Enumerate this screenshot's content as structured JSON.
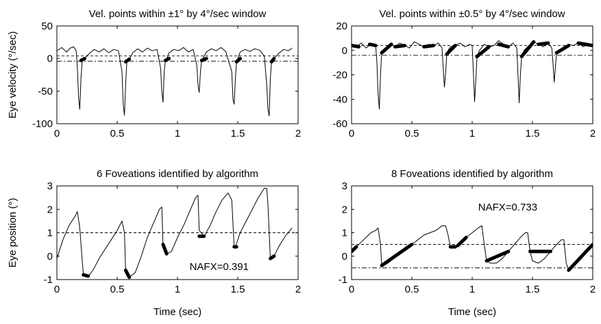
{
  "chart_data": [
    {
      "type": "line",
      "title": "Vel. points within ±1° by 4°/sec window",
      "xlabel": "",
      "ylabel": "Eye velocity (°/sec)",
      "xlim": [
        0,
        2
      ],
      "ylim": [
        -100,
        50
      ],
      "xticks": [
        "0",
        "0.5",
        "1",
        "1.5",
        "2"
      ],
      "xtick_values": [
        0,
        0.5,
        1,
        1.5,
        2
      ],
      "yticks": [
        "-100",
        "-50",
        "0",
        "50"
      ],
      "ytick_values": [
        -100,
        -50,
        0,
        50
      ],
      "grid": false,
      "reference_lines": [
        4,
        -4
      ],
      "series": [
        {
          "x": [
            0,
            0.04,
            0.08,
            0.11,
            0.14,
            0.16,
            0.17,
            0.18,
            0.19,
            0.2,
            0.21,
            0.23,
            0.27,
            0.31,
            0.35,
            0.39,
            0.43,
            0.47,
            0.51,
            0.54,
            0.55,
            0.56,
            0.57,
            0.58,
            0.6,
            0.63,
            0.67,
            0.71,
            0.75,
            0.79,
            0.83,
            0.86,
            0.87,
            0.88,
            0.89,
            0.9,
            0.91,
            0.93,
            0.97,
            1.01,
            1.05,
            1.09,
            1.13,
            1.16,
            1.17,
            1.18,
            1.19,
            1.2,
            1.21,
            1.24,
            1.28,
            1.32,
            1.36,
            1.4,
            1.45,
            1.46,
            1.47,
            1.48,
            1.49,
            1.5,
            1.52,
            1.56,
            1.6,
            1.64,
            1.68,
            1.72,
            1.74,
            1.75,
            1.76,
            1.77,
            1.78,
            1.8,
            1.84,
            1.88,
            1.92,
            1.95
          ],
          "y": [
            12,
            17,
            10,
            16,
            18,
            12,
            -15,
            -60,
            -78,
            -30,
            -3,
            0,
            8,
            14,
            10,
            15,
            9,
            14,
            12,
            -20,
            -70,
            -87,
            -40,
            -5,
            -1,
            9,
            15,
            10,
            16,
            12,
            14,
            -15,
            -50,
            -67,
            -20,
            -3,
            0,
            9,
            14,
            12,
            17,
            10,
            14,
            -10,
            -40,
            -52,
            -22,
            -3,
            0,
            10,
            15,
            12,
            17,
            11,
            -20,
            -63,
            -70,
            -30,
            -5,
            0,
            10,
            14,
            11,
            15,
            13,
            4,
            -40,
            -77,
            -88,
            -30,
            -5,
            0,
            8,
            14,
            12,
            16
          ]
        }
      ],
      "highlight_segments": [
        {
          "x": [
            0.2,
            0.23
          ],
          "y": [
            -3,
            0
          ]
        },
        {
          "x": [
            0.57,
            0.6
          ],
          "y": [
            -5,
            -1
          ]
        },
        {
          "x": [
            0.9,
            0.93
          ],
          "y": [
            -3,
            0
          ]
        },
        {
          "x": [
            1.2,
            1.24
          ],
          "y": [
            -3,
            0
          ]
        },
        {
          "x": [
            1.49,
            1.52
          ],
          "y": [
            -5,
            0
          ]
        },
        {
          "x": [
            1.78,
            1.8
          ],
          "y": [
            -5,
            0
          ]
        }
      ]
    },
    {
      "type": "line",
      "title": "Vel. points within ±0.5° by 4°/sec window",
      "xlabel": "",
      "ylabel": "",
      "xlim": [
        0,
        2
      ],
      "ylim": [
        -60,
        20
      ],
      "xticks": [
        "0",
        "0.5",
        "1",
        "1.5",
        "2"
      ],
      "xtick_values": [
        0,
        0.5,
        1,
        1.5,
        2
      ],
      "yticks": [
        "-60",
        "-40",
        "-20",
        "0",
        "20"
      ],
      "ytick_values": [
        -60,
        -40,
        -20,
        0,
        20
      ],
      "grid": false,
      "reference_lines": [
        4,
        -4
      ],
      "series": [
        {
          "x": [
            0,
            0.04,
            0.08,
            0.12,
            0.16,
            0.2,
            0.21,
            0.22,
            0.23,
            0.24,
            0.25,
            0.27,
            0.3,
            0.33,
            0.36,
            0.4,
            0.44,
            0.48,
            0.52,
            0.56,
            0.6,
            0.64,
            0.68,
            0.72,
            0.75,
            0.76,
            0.77,
            0.78,
            0.79,
            0.8,
            0.82,
            0.86,
            0.9,
            0.94,
            0.98,
            1.0,
            1.01,
            1.02,
            1.03,
            1.04,
            1.06,
            1.1,
            1.14,
            1.18,
            1.22,
            1.26,
            1.3,
            1.34,
            1.37,
            1.38,
            1.39,
            1.4,
            1.41,
            1.43,
            1.47,
            1.51,
            1.55,
            1.59,
            1.63,
            1.66,
            1.67,
            1.68,
            1.69,
            1.7,
            1.72,
            1.76,
            1.8,
            1.84,
            1.88,
            1.92,
            1.96,
            2.0
          ],
          "y": [
            4,
            3,
            6,
            2,
            5,
            4,
            -10,
            -35,
            -48,
            -20,
            -2,
            0,
            3,
            5,
            3,
            6,
            4,
            2,
            7,
            5,
            3,
            5,
            4,
            6,
            2,
            -15,
            -30,
            -18,
            -3,
            0,
            3,
            4,
            6,
            3,
            5,
            4,
            -18,
            -42,
            -25,
            -5,
            0,
            5,
            3,
            4,
            8,
            5,
            3,
            6,
            2,
            -20,
            -43,
            -20,
            -5,
            0,
            4,
            7,
            5,
            3,
            6,
            2,
            -10,
            -26,
            -14,
            -2,
            0,
            3,
            5,
            4,
            6,
            3,
            5,
            4
          ]
        }
      ],
      "highlight_segments": [
        {
          "x": [
            0.0,
            0.06
          ],
          "y": [
            4,
            3
          ]
        },
        {
          "x": [
            0.15,
            0.2
          ],
          "y": [
            5,
            4
          ]
        },
        {
          "x": [
            0.25,
            0.33
          ],
          "y": [
            -2,
            5
          ]
        },
        {
          "x": [
            0.36,
            0.44
          ],
          "y": [
            3,
            4
          ]
        },
        {
          "x": [
            0.6,
            0.68
          ],
          "y": [
            3,
            4
          ]
        },
        {
          "x": [
            0.79,
            0.86
          ],
          "y": [
            -3,
            4
          ]
        },
        {
          "x": [
            1.04,
            1.14
          ],
          "y": [
            -5,
            3
          ]
        },
        {
          "x": [
            1.22,
            1.3
          ],
          "y": [
            5,
            3
          ]
        },
        {
          "x": [
            1.41,
            1.51
          ],
          "y": [
            -5,
            7
          ]
        },
        {
          "x": [
            1.55,
            1.63
          ],
          "y": [
            5,
            6
          ]
        },
        {
          "x": [
            1.7,
            1.8
          ],
          "y": [
            -2,
            4
          ]
        },
        {
          "x": [
            1.88,
            2.0
          ],
          "y": [
            6,
            4
          ]
        }
      ]
    },
    {
      "type": "line",
      "title": "6  Foveations identified by algorithm",
      "xlabel": "Time (sec)",
      "ylabel": "Eye position (°)",
      "xlim": [
        0,
        2
      ],
      "ylim": [
        -1,
        3
      ],
      "xticks": [
        "0",
        "0.5",
        "1",
        "1.5",
        "2"
      ],
      "xtick_values": [
        0,
        0.5,
        1,
        1.5,
        2
      ],
      "yticks": [
        "-1",
        "0",
        "1",
        "2",
        "3"
      ],
      "ytick_values": [
        -1,
        0,
        1,
        2,
        3
      ],
      "grid": false,
      "reference_lines": [
        1,
        -1
      ],
      "annotation": {
        "text": "NAFX=0.391",
        "x": 1.1,
        "y": -0.45
      },
      "series": [
        {
          "x": [
            0,
            0.05,
            0.1,
            0.15,
            0.17,
            0.19,
            0.21,
            0.22,
            0.26,
            0.3,
            0.35,
            0.4,
            0.45,
            0.5,
            0.54,
            0.56,
            0.57,
            0.6,
            0.65,
            0.7,
            0.75,
            0.8,
            0.85,
            0.87,
            0.88,
            0.91,
            0.95,
            1.0,
            1.05,
            1.1,
            1.15,
            1.17,
            1.18,
            1.22,
            1.27,
            1.32,
            1.37,
            1.42,
            1.45,
            1.47,
            1.48,
            1.52,
            1.57,
            1.62,
            1.67,
            1.72,
            1.74,
            1.75,
            1.77,
            1.8,
            1.85,
            1.9,
            1.95
          ],
          "y": [
            -0.1,
            0.7,
            1.3,
            1.7,
            1.9,
            1.2,
            -0.2,
            -0.8,
            -0.85,
            -0.6,
            -0.1,
            0.3,
            0.7,
            1.1,
            1.5,
            1.0,
            -0.6,
            -0.9,
            -0.7,
            0.0,
            0.8,
            1.4,
            2.0,
            2.1,
            0.5,
            0.1,
            0.2,
            0.8,
            1.3,
            1.9,
            2.5,
            2.6,
            1.1,
            0.85,
            1.3,
            1.9,
            2.4,
            2.7,
            2.4,
            0.4,
            0.4,
            1.0,
            1.5,
            2.0,
            2.5,
            2.9,
            2.9,
            2.2,
            -0.1,
            0.0,
            0.5,
            0.9,
            1.2
          ]
        }
      ],
      "highlight_segments": [
        {
          "x": [
            0.22,
            0.26
          ],
          "y": [
            -0.8,
            -0.85
          ]
        },
        {
          "x": [
            0.57,
            0.6
          ],
          "y": [
            -0.6,
            -0.9
          ]
        },
        {
          "x": [
            0.88,
            0.91
          ],
          "y": [
            0.5,
            0.1
          ]
        },
        {
          "x": [
            1.18,
            1.22
          ],
          "y": [
            0.85,
            0.85
          ]
        },
        {
          "x": [
            1.47,
            1.49
          ],
          "y": [
            0.4,
            0.4
          ]
        },
        {
          "x": [
            1.77,
            1.8
          ],
          "y": [
            -0.1,
            0.0
          ]
        }
      ]
    },
    {
      "type": "line",
      "title": "8  Foveations identified by algorithm",
      "xlabel": "Time (sec)",
      "ylabel": "",
      "xlim": [
        0,
        2
      ],
      "ylim": [
        -1,
        3
      ],
      "xticks": [
        "0",
        "0.5",
        "1",
        "1.5",
        "2"
      ],
      "xtick_values": [
        0,
        0.5,
        1,
        1.5,
        2
      ],
      "yticks": [
        "-1",
        "0",
        "1",
        "2",
        "3"
      ],
      "ytick_values": [
        -1,
        0,
        1,
        2,
        3
      ],
      "grid": false,
      "reference_lines": [
        0.5,
        -0.5
      ],
      "annotation": {
        "text": "NAFX=0.733",
        "x": 1.05,
        "y": 2.1
      },
      "series": [
        {
          "x": [
            0,
            0.04,
            0.08,
            0.12,
            0.16,
            0.2,
            0.22,
            0.24,
            0.25,
            0.27,
            0.3,
            0.35,
            0.4,
            0.45,
            0.5,
            0.55,
            0.6,
            0.65,
            0.7,
            0.75,
            0.78,
            0.8,
            0.82,
            0.85,
            0.9,
            0.95,
            1.0,
            1.05,
            1.08,
            1.1,
            1.12,
            1.15,
            1.2,
            1.25,
            1.3,
            1.35,
            1.4,
            1.44,
            1.46,
            1.48,
            1.5,
            1.55,
            1.6,
            1.65,
            1.7,
            1.74,
            1.76,
            1.78,
            1.8,
            1.85,
            1.9,
            1.95,
            2.0
          ],
          "y": [
            0.2,
            0.4,
            0.6,
            0.8,
            1.0,
            1.1,
            1.2,
            0.5,
            -0.4,
            -0.4,
            -0.3,
            -0.1,
            0.1,
            0.3,
            0.5,
            0.7,
            0.9,
            1.0,
            1.1,
            1.3,
            1.3,
            0.9,
            0.4,
            0.4,
            0.5,
            0.8,
            1.0,
            1.2,
            1.3,
            0.5,
            -0.2,
            -0.3,
            -0.3,
            -0.1,
            0.2,
            0.5,
            0.8,
            1.0,
            1.0,
            0.2,
            -0.2,
            -0.3,
            -0.1,
            0.2,
            0.5,
            0.7,
            0.7,
            -0.3,
            -0.6,
            -0.4,
            -0.1,
            0.2,
            0.5
          ]
        }
      ],
      "highlight_segments": [
        {
          "x": [
            0.0,
            0.04
          ],
          "y": [
            0.2,
            0.4
          ]
        },
        {
          "x": [
            0.25,
            0.5
          ],
          "y": [
            -0.4,
            0.5
          ]
        },
        {
          "x": [
            0.82,
            0.86
          ],
          "y": [
            0.4,
            0.4
          ]
        },
        {
          "x": [
            0.88,
            0.95
          ],
          "y": [
            0.45,
            0.8
          ]
        },
        {
          "x": [
            1.12,
            1.3
          ],
          "y": [
            -0.2,
            0.2
          ]
        },
        {
          "x": [
            1.48,
            1.65
          ],
          "y": [
            0.2,
            0.2
          ]
        },
        {
          "x": [
            1.8,
            2.0
          ],
          "y": [
            -0.6,
            0.5
          ]
        }
      ]
    }
  ]
}
